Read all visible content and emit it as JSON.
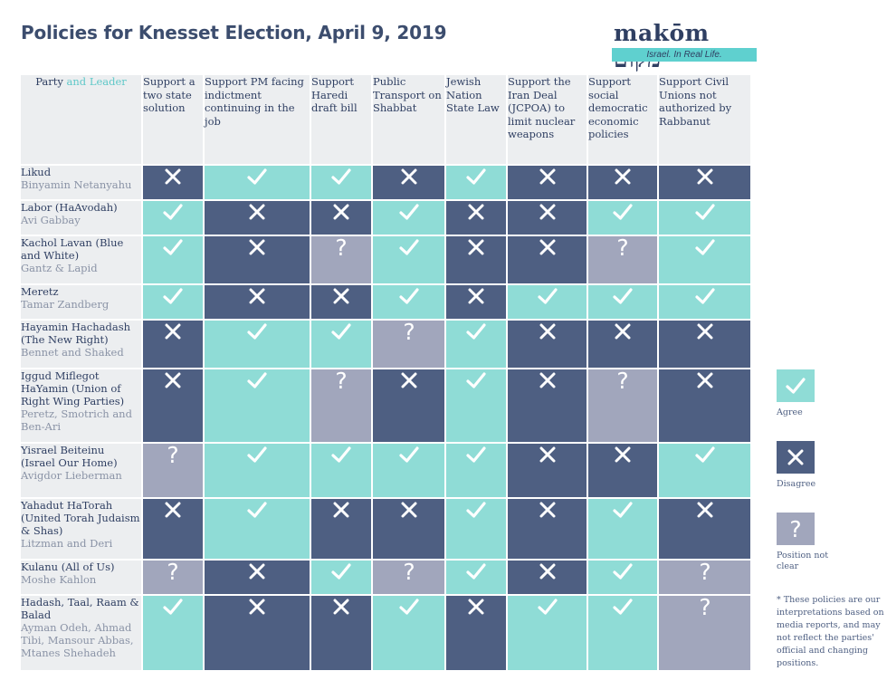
{
  "title": "Policies for Knesset Election, April 9, 2019",
  "logo": {
    "word": "makōm מקום",
    "tagline": "Israel. In Real Life."
  },
  "header": {
    "party_label": "Party",
    "and_label": "and",
    "leader_label": "Leader",
    "policies": [
      "Support a two state solution",
      "Support PM facing indictment continuing in the job",
      "Support Haredi draft bill",
      "Public Transport on Shabbat",
      "Jewish Nation State Law",
      "Support the Iran Deal (JCPOA) to limit nuclear weapons",
      "Support social democratic economic policies",
      "Support Civil Unions not authorized by Rabbanut"
    ]
  },
  "colors": {
    "agree": "#8fdcd6",
    "disagree": "#4e5f82",
    "unclear": "#a1a6bc",
    "header_bg": "#eceef0",
    "title": "#3c4d6e"
  },
  "icons": {
    "agree": "check-icon",
    "disagree": "x-icon",
    "unclear": "question-icon"
  },
  "rows": [
    {
      "party": "Likud",
      "leader": "Binyamin Netanyahu",
      "positions": [
        "disagree",
        "agree",
        "agree",
        "disagree",
        "agree",
        "disagree",
        "disagree",
        "disagree"
      ]
    },
    {
      "party": "Labor (HaAvodah)",
      "leader": "Avi Gabbay",
      "positions": [
        "agree",
        "disagree",
        "disagree",
        "agree",
        "disagree",
        "disagree",
        "agree",
        "agree"
      ]
    },
    {
      "party": "Kachol Lavan (Blue and White)",
      "leader": "Gantz & Lapid",
      "positions": [
        "agree",
        "disagree",
        "unclear",
        "agree",
        "disagree",
        "disagree",
        "unclear",
        "agree"
      ]
    },
    {
      "party": "Meretz",
      "leader": "Tamar Zandberg",
      "positions": [
        "agree",
        "disagree",
        "disagree",
        "agree",
        "disagree",
        "agree",
        "agree",
        "agree"
      ]
    },
    {
      "party": "Hayamin Hachadash (The New Right)",
      "leader": "Bennet and Shaked",
      "positions": [
        "disagree",
        "agree",
        "agree",
        "unclear",
        "agree",
        "disagree",
        "disagree",
        "disagree"
      ]
    },
    {
      "party": "Iggud Miflegot HaYamin (Union of Right Wing Parties)",
      "leader": "Peretz, Smotrich and Ben-Ari",
      "positions": [
        "disagree",
        "agree",
        "unclear",
        "disagree",
        "agree",
        "disagree",
        "unclear",
        "disagree"
      ]
    },
    {
      "party": "Yisrael Beiteinu (Israel Our Home)",
      "leader": "Avigdor Lieberman",
      "positions": [
        "unclear",
        "agree",
        "agree",
        "agree",
        "agree",
        "disagree",
        "disagree",
        "agree"
      ]
    },
    {
      "party": "Yahadut HaTorah (United Torah Judaism & Shas)",
      "leader": "Litzman and Deri",
      "positions": [
        "disagree",
        "agree",
        "disagree",
        "disagree",
        "agree",
        "disagree",
        "agree",
        "disagree"
      ]
    },
    {
      "party": "Kulanu (All of Us)",
      "leader": "Moshe Kahlon",
      "positions": [
        "unclear",
        "disagree",
        "agree",
        "unclear",
        "agree",
        "disagree",
        "agree",
        "unclear"
      ]
    },
    {
      "party": "Hadash, Taal, Raam & Balad",
      "leader": "Ayman Odeh, Ahmad Tibi, Mansour Abbas, Mtanes Shehadeh",
      "positions": [
        "agree",
        "disagree",
        "disagree",
        "agree",
        "disagree",
        "agree",
        "agree",
        "unclear"
      ]
    }
  ],
  "legend": [
    {
      "key": "agree",
      "label": "Agree"
    },
    {
      "key": "disagree",
      "label": "Disagree"
    },
    {
      "key": "unclear",
      "label": "Position not clear"
    }
  ],
  "footnote": "* These policies are our interpretations based on media reports, and may not reflect the parties' official and changing positions."
}
